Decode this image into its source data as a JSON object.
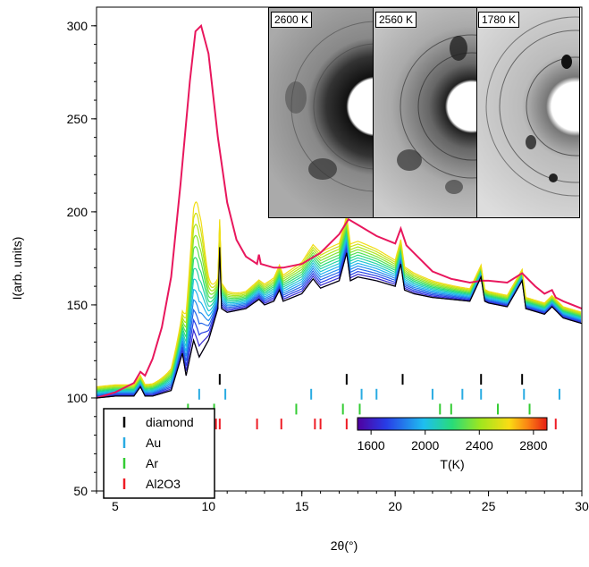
{
  "chart_data": {
    "type": "line",
    "xlabel": "2θ(°)",
    "ylabel": "I(arb. units)",
    "xlim": [
      4,
      30
    ],
    "ylim": [
      50,
      310
    ],
    "xticks": [
      5,
      10,
      15,
      20,
      25,
      30
    ],
    "yticks": [
      50,
      100,
      150,
      200,
      250,
      300
    ],
    "grid": false,
    "background_color": "#ffffff",
    "series": [
      {
        "color": "#e8175d",
        "x": [
          4,
          5,
          6,
          6.35,
          6.6,
          7,
          7.5,
          8,
          8.5,
          9,
          9.3,
          9.6,
          10,
          10.5,
          11,
          11.5,
          12,
          12.6,
          12.7,
          12.8,
          13.5,
          14,
          15,
          16,
          17,
          17.5,
          18,
          19,
          20,
          20.3,
          20.6,
          21,
          22,
          23,
          24,
          24.6,
          25,
          26,
          26.8,
          27.5,
          28,
          28.4,
          28.6,
          29,
          30
        ],
        "y": [
          100,
          103,
          108,
          114,
          112,
          121,
          138,
          165,
          215,
          270,
          297,
          300,
          285,
          240,
          205,
          185,
          176,
          172,
          177,
          172,
          170,
          170,
          172,
          178,
          188,
          196,
          193,
          187,
          183,
          191,
          182,
          178,
          168,
          164,
          162,
          163,
          163,
          162,
          167,
          160,
          156,
          158,
          154,
          152,
          148
        ]
      },
      {
        "color": "#000000",
        "x": [
          4,
          5,
          6,
          6.35,
          6.6,
          7,
          8,
          8.6,
          8.8,
          9.2,
          9.5,
          10,
          10.5,
          10.6,
          10.7,
          11,
          12,
          12.7,
          13,
          13.5,
          13.8,
          14,
          15,
          15.6,
          16,
          17,
          17.4,
          17.6,
          18,
          19,
          20,
          20.3,
          20.5,
          21,
          22,
          23,
          24,
          24.6,
          24.8,
          25,
          26,
          26.8,
          27,
          28,
          28.4,
          29,
          30
        ],
        "y": [
          100,
          101,
          101,
          106,
          101,
          101,
          104,
          124,
          112,
          131,
          122,
          131,
          148,
          181,
          148,
          146,
          148,
          153,
          150,
          152,
          158,
          152,
          156,
          164,
          159,
          163,
          178,
          163,
          165,
          163,
          160,
          172,
          158,
          156,
          154,
          153,
          152,
          165,
          152,
          151,
          149,
          163,
          148,
          145,
          149,
          143,
          140
        ]
      }
    ],
    "temperature_series": {
      "temperatures_K": [
        1580,
        1640,
        1720,
        1800,
        1880,
        1960,
        2040,
        2120,
        2200,
        2280,
        2360,
        2440,
        2520,
        2600
      ],
      "base_scale_start": 0.0,
      "base_scale_end": 1.0
    },
    "reflection_markers": [
      {
        "name": "diamond",
        "color": "#000000",
        "y": 110,
        "x": [
          10.6,
          17.4,
          20.4,
          24.6,
          26.8
        ]
      },
      {
        "name": "Au",
        "color": "#29abe2",
        "y": 102,
        "x": [
          9.5,
          10.9,
          15.5,
          18.2,
          19.0,
          22.0,
          23.6,
          24.6,
          26.9,
          28.8
        ]
      },
      {
        "name": "Ar",
        "color": "#33cc33",
        "y": 94,
        "x": [
          8.9,
          10.3,
          14.7,
          17.2,
          18.1,
          22.4,
          23.0,
          25.5,
          27.2
        ]
      },
      {
        "name": "Al2O3",
        "color": "#ee1c25",
        "y": 86,
        "x": [
          6.4,
          8.6,
          9.2,
          10.4,
          10.6,
          12.6,
          13.9,
          15.7,
          16.0,
          17.4,
          18.0,
          18.6,
          19.2,
          21.4,
          22.4,
          28.6
        ]
      }
    ],
    "legend": {
      "placement": "bottom-left",
      "entries": [
        "diamond",
        "Au",
        "Ar",
        "Al2O3"
      ]
    },
    "colorbar": {
      "label": "T(K)",
      "ticks": [
        "1600",
        "2000",
        "2400",
        "2800"
      ],
      "tick_values": [
        1600,
        2000,
        2400,
        2800
      ],
      "range": [
        1500,
        2900
      ],
      "placement": "bottom-right"
    },
    "insets": [
      {
        "label": "2600 K"
      },
      {
        "label": "2560 K"
      },
      {
        "label": "1780 K"
      }
    ]
  }
}
